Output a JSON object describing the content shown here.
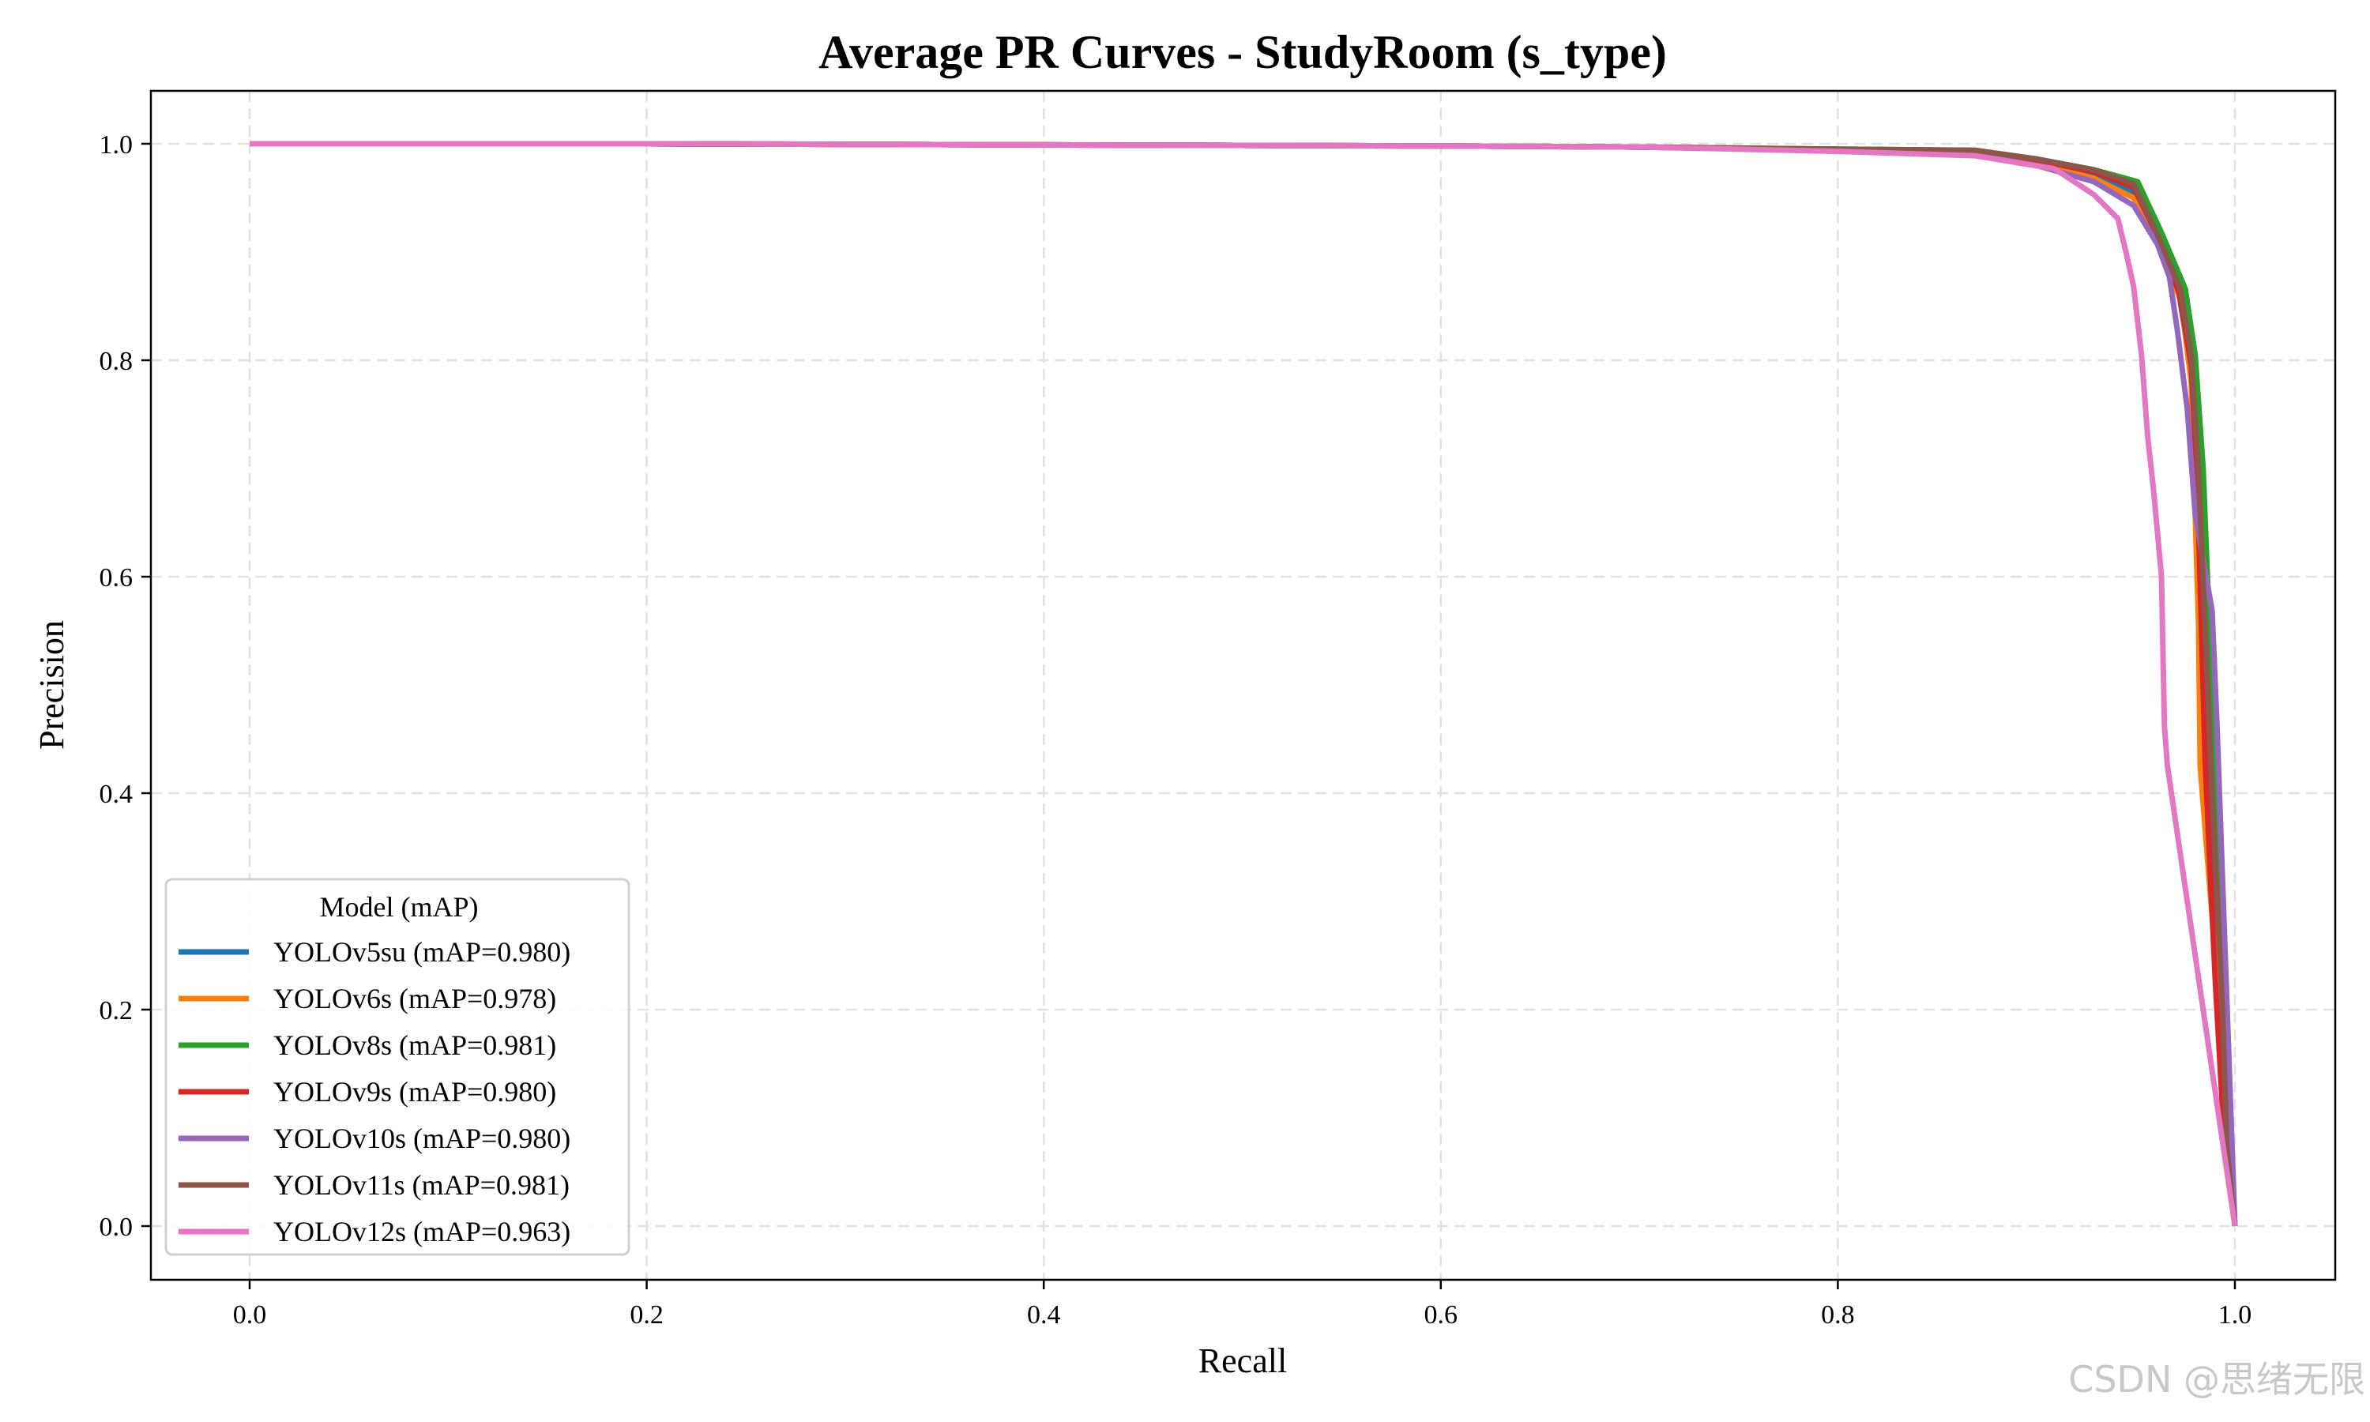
{
  "chart_data": {
    "type": "line",
    "title": "Average PR Curves - StudyRoom (s_type)",
    "xlabel": "Recall",
    "ylabel": "Precision",
    "xlim": [
      -0.05,
      1.05
    ],
    "ylim": [
      -0.05,
      1.05
    ],
    "xticks": [
      "0.0",
      "0.2",
      "0.4",
      "0.6",
      "0.8",
      "1.0"
    ],
    "yticks": [
      "0.0",
      "0.2",
      "0.4",
      "0.6",
      "0.8",
      "1.0"
    ],
    "grid": true,
    "legend": {
      "title": "Model (mAP)",
      "placement": "lower-left"
    },
    "series": [
      {
        "name": "YOLOv5su (mAP=0.980)",
        "color": "#1f77b4",
        "x": [
          0,
          0.2,
          0.4,
          0.6,
          0.7,
          0.8,
          0.869,
          0.9,
          0.929,
          0.949,
          0.961,
          0.972,
          0.978,
          0.981,
          0.985,
          0.99,
          0.994,
          1.0
        ],
        "y": [
          1,
          1,
          0.999,
          0.998,
          0.997,
          0.994,
          0.992,
          0.984,
          0.972,
          0.955,
          0.915,
          0.86,
          0.79,
          0.68,
          0.45,
          0.26,
          0.12,
          0
        ]
      },
      {
        "name": "YOLOv6s (mAP=0.978)",
        "color": "#ff7f0e",
        "x": [
          0,
          0.2,
          0.4,
          0.6,
          0.7,
          0.8,
          0.869,
          0.9,
          0.929,
          0.949,
          0.961,
          0.973,
          0.978,
          0.98,
          0.9817,
          0.9825,
          0.993,
          1.0
        ],
        "y": [
          1,
          1,
          0.999,
          0.998,
          0.997,
          0.994,
          0.991,
          0.982,
          0.968,
          0.95,
          0.914,
          0.853,
          0.78,
          0.658,
          0.555,
          0.425,
          0.182,
          0
        ]
      },
      {
        "name": "YOLOv8s (mAP=0.981)",
        "color": "#2ca02c",
        "x": [
          0,
          0.2,
          0.4,
          0.6,
          0.7,
          0.8,
          0.869,
          0.9,
          0.929,
          0.951,
          0.963,
          0.975,
          0.98,
          0.984,
          0.99,
          0.995,
          0.997,
          1.0
        ],
        "y": [
          1,
          1,
          0.999,
          0.998,
          0.997,
          0.995,
          0.994,
          0.986,
          0.976,
          0.965,
          0.918,
          0.866,
          0.805,
          0.7,
          0.42,
          0.21,
          0.08,
          0
        ]
      },
      {
        "name": "YOLOv9s (mAP=0.980)",
        "color": "#d62728",
        "x": [
          0,
          0.2,
          0.4,
          0.6,
          0.7,
          0.8,
          0.869,
          0.9,
          0.929,
          0.949,
          0.961,
          0.972,
          0.978,
          0.981,
          0.985,
          0.99,
          0.994,
          1.0
        ],
        "y": [
          1,
          1,
          0.999,
          0.998,
          0.997,
          0.994,
          0.993,
          0.985,
          0.974,
          0.96,
          0.915,
          0.862,
          0.795,
          0.69,
          0.43,
          0.23,
          0.1,
          0
        ]
      },
      {
        "name": "YOLOv10s (mAP=0.980)",
        "color": "#9467bd",
        "x": [
          0,
          0.2,
          0.4,
          0.6,
          0.7,
          0.8,
          0.869,
          0.9,
          0.929,
          0.949,
          0.961,
          0.967,
          0.971,
          0.976,
          0.98,
          0.9885,
          0.991,
          1.0
        ],
        "y": [
          1,
          1,
          0.999,
          0.998,
          0.997,
          0.994,
          0.99,
          0.98,
          0.965,
          0.943,
          0.907,
          0.877,
          0.828,
          0.755,
          0.658,
          0.569,
          0.462,
          0
        ]
      },
      {
        "name": "YOLOv11s (mAP=0.981)",
        "color": "#8c564b",
        "x": [
          0,
          0.2,
          0.4,
          0.6,
          0.7,
          0.8,
          0.869,
          0.9,
          0.929,
          0.949,
          0.961,
          0.9726,
          0.978,
          0.9817,
          0.9885,
          0.9937,
          0.996,
          1.0
        ],
        "y": [
          1,
          1,
          0.999,
          0.998,
          0.997,
          0.995,
          0.994,
          0.986,
          0.976,
          0.963,
          0.916,
          0.865,
          0.804,
          0.695,
          0.401,
          0.2015,
          0.071,
          0
        ]
      },
      {
        "name": "YOLOv12s (mAP=0.963)",
        "color": "#e377c2",
        "x": [
          0,
          0.2,
          0.4,
          0.6,
          0.7,
          0.8,
          0.869,
          0.909,
          0.929,
          0.941,
          0.945,
          0.949,
          0.953,
          0.956,
          0.959,
          0.963,
          0.9645,
          0.966,
          1.0
        ],
        "y": [
          1,
          1,
          0.999,
          0.998,
          0.997,
          0.993,
          0.989,
          0.977,
          0.953,
          0.931,
          0.901,
          0.868,
          0.804,
          0.731,
          0.68,
          0.601,
          0.462,
          0.425,
          0
        ]
      }
    ]
  },
  "watermark": "CSDN @思绪无限"
}
